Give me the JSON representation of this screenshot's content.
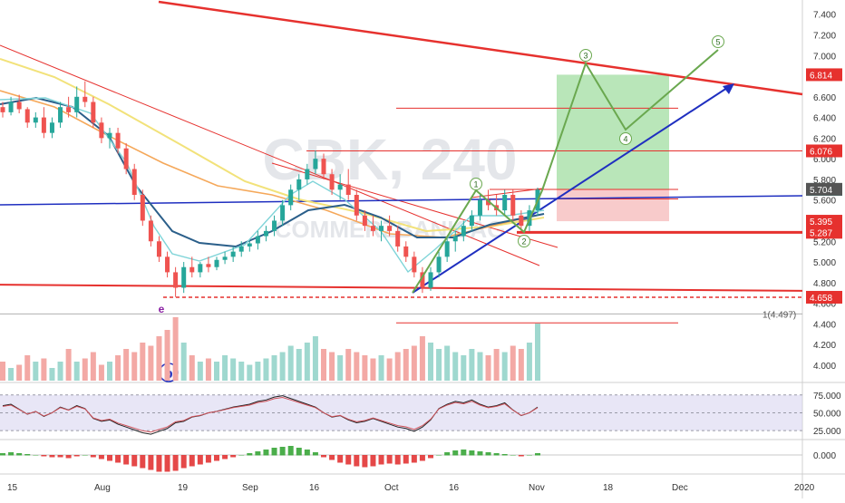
{
  "chart_data": {
    "type": "candlestick",
    "watermark": {
      "symbol": "CBK, 240",
      "name": "COMMERZBANK AG"
    },
    "colors": {
      "up": "#26a69a",
      "down": "#ef5350",
      "bull_wave": "#6aa84f",
      "trendline_red": "#e6312e",
      "trendline_blue": "#1f2fc0",
      "ma_blue": "#2b5f8a",
      "ma_cyan": "#7fd4d8",
      "ma_yellow": "#f2e27a",
      "ma_orange": "#f5a85a",
      "target_box": "#7fd27f",
      "stop_box": "#f4a8a8",
      "rsi_band": "#d6d2ee"
    },
    "x_axis": {
      "labels": [
        "15",
        "Aug",
        "19",
        "Sep",
        "16",
        "Oct",
        "16",
        "Nov",
        "18",
        "Dec",
        "2020"
      ],
      "label_x": [
        8,
        104,
        196,
        267,
        341,
        424,
        495,
        583,
        665,
        741,
        876
      ]
    },
    "price_axis": {
      "ticks": [
        "7.400",
        "7.200",
        "7.000",
        "6.800",
        "6.600",
        "6.400",
        "6.200",
        "6.000",
        "5.800",
        "5.600",
        "5.400",
        "5.200",
        "5.000",
        "4.800",
        "4.600",
        "4.400",
        "4.200",
        "4.000"
      ],
      "min": 3.85,
      "max": 7.45,
      "tags": [
        {
          "value": 6.814,
          "label": "6.814",
          "color": "#e6312e"
        },
        {
          "value": 6.076,
          "label": "6.076",
          "color": "#e6312e"
        },
        {
          "value": 5.703,
          "label": "5.703",
          "color": "#26a69a"
        },
        {
          "value": 5.704,
          "label": "5.704",
          "color": "#555555"
        },
        {
          "value": 5.395,
          "label": "5.395",
          "color": "#e6312e"
        },
        {
          "value": 5.287,
          "label": "5.287",
          "color": "#e6312e"
        },
        {
          "value": 4.658,
          "label": "4.658",
          "color": "#e6312e"
        }
      ]
    },
    "price_series_ohlc": [
      [
        6.5,
        6.55,
        6.4,
        6.45
      ],
      [
        6.45,
        6.6,
        6.42,
        6.55
      ],
      [
        6.55,
        6.62,
        6.44,
        6.48
      ],
      [
        6.48,
        6.5,
        6.3,
        6.35
      ],
      [
        6.35,
        6.45,
        6.3,
        6.4
      ],
      [
        6.4,
        6.5,
        6.2,
        6.25
      ],
      [
        6.25,
        6.4,
        6.2,
        6.35
      ],
      [
        6.35,
        6.55,
        6.3,
        6.5
      ],
      [
        6.5,
        6.6,
        6.4,
        6.45
      ],
      [
        6.45,
        6.7,
        6.4,
        6.6
      ],
      [
        6.6,
        6.75,
        6.5,
        6.55
      ],
      [
        6.55,
        6.6,
        6.3,
        6.35
      ],
      [
        6.35,
        6.4,
        6.15,
        6.2
      ],
      [
        6.2,
        6.3,
        6.1,
        6.25
      ],
      [
        6.25,
        6.3,
        6.05,
        6.1
      ],
      [
        6.1,
        6.15,
        5.85,
        5.9
      ],
      [
        5.9,
        5.95,
        5.6,
        5.65
      ],
      [
        5.65,
        5.7,
        5.35,
        5.4
      ],
      [
        5.4,
        5.45,
        5.15,
        5.2
      ],
      [
        5.2,
        5.25,
        5.0,
        5.05
      ],
      [
        5.05,
        5.1,
        4.85,
        4.9
      ],
      [
        4.9,
        4.95,
        4.66,
        4.75
      ],
      [
        4.75,
        5.0,
        4.7,
        4.95
      ],
      [
        4.95,
        5.05,
        4.85,
        4.9
      ],
      [
        4.9,
        5.0,
        4.85,
        4.98
      ],
      [
        4.98,
        5.05,
        4.9,
        4.95
      ],
      [
        4.95,
        5.05,
        4.92,
        5.02
      ],
      [
        5.02,
        5.1,
        4.98,
        5.05
      ],
      [
        5.05,
        5.15,
        5.0,
        5.1
      ],
      [
        5.1,
        5.2,
        5.05,
        5.15
      ],
      [
        5.15,
        5.2,
        5.1,
        5.18
      ],
      [
        5.18,
        5.3,
        5.12,
        5.25
      ],
      [
        5.25,
        5.35,
        5.2,
        5.3
      ],
      [
        5.3,
        5.45,
        5.25,
        5.4
      ],
      [
        5.4,
        5.6,
        5.35,
        5.55
      ],
      [
        5.55,
        5.75,
        5.5,
        5.7
      ],
      [
        5.7,
        5.85,
        5.6,
        5.8
      ],
      [
        5.8,
        5.95,
        5.75,
        5.9
      ],
      [
        5.9,
        6.08,
        5.85,
        6.0
      ],
      [
        6.0,
        6.05,
        5.8,
        5.85
      ],
      [
        5.85,
        5.9,
        5.65,
        5.7
      ],
      [
        5.7,
        5.85,
        5.6,
        5.75
      ],
      [
        5.75,
        5.9,
        5.6,
        5.65
      ],
      [
        5.65,
        5.7,
        5.4,
        5.45
      ],
      [
        5.45,
        5.5,
        5.3,
        5.35
      ],
      [
        5.35,
        5.45,
        5.25,
        5.3
      ],
      [
        5.3,
        5.4,
        5.2,
        5.35
      ],
      [
        5.35,
        5.45,
        5.25,
        5.3
      ],
      [
        5.3,
        5.35,
        5.1,
        5.15
      ],
      [
        5.15,
        5.2,
        5.0,
        5.05
      ],
      [
        5.05,
        5.1,
        4.85,
        4.9
      ],
      [
        4.9,
        4.95,
        4.7,
        4.75
      ],
      [
        4.75,
        4.95,
        4.72,
        4.9
      ],
      [
        4.9,
        5.1,
        4.85,
        5.05
      ],
      [
        5.05,
        5.25,
        5.0,
        5.2
      ],
      [
        5.2,
        5.3,
        5.1,
        5.25
      ],
      [
        5.25,
        5.4,
        5.2,
        5.35
      ],
      [
        5.35,
        5.5,
        5.3,
        5.45
      ],
      [
        5.45,
        5.65,
        5.4,
        5.6
      ],
      [
        5.6,
        5.7,
        5.5,
        5.55
      ],
      [
        5.55,
        5.65,
        5.45,
        5.5
      ],
      [
        5.5,
        5.7,
        5.45,
        5.65
      ],
      [
        5.65,
        5.7,
        5.4,
        5.45
      ],
      [
        5.45,
        5.5,
        5.3,
        5.35
      ],
      [
        5.35,
        5.55,
        5.3,
        5.5
      ],
      [
        5.5,
        5.72,
        5.45,
        5.7
      ]
    ],
    "volume_series": [
      0.3,
      0.2,
      0.25,
      0.4,
      0.3,
      0.35,
      0.2,
      0.3,
      0.5,
      0.3,
      0.35,
      0.45,
      0.25,
      0.3,
      0.4,
      0.5,
      0.45,
      0.6,
      0.55,
      0.7,
      0.8,
      1.0,
      0.6,
      0.4,
      0.3,
      0.35,
      0.3,
      0.4,
      0.35,
      0.3,
      0.25,
      0.3,
      0.35,
      0.4,
      0.45,
      0.55,
      0.5,
      0.6,
      0.7,
      0.5,
      0.45,
      0.4,
      0.5,
      0.45,
      0.4,
      0.35,
      0.4,
      0.35,
      0.45,
      0.5,
      0.55,
      0.7,
      0.6,
      0.5,
      0.55,
      0.45,
      0.4,
      0.5,
      0.45,
      0.4,
      0.5,
      0.45,
      0.55,
      0.5,
      0.6,
      0.9
    ],
    "rsi": {
      "ticks": [
        "75.000",
        "50.000",
        "25.000"
      ],
      "levels": [
        75,
        50,
        25
      ]
    },
    "macd": {
      "ticks": [
        "0.000"
      ]
    },
    "annotations": [
      {
        "kind": "wave_label",
        "text": "1"
      },
      {
        "kind": "wave_label",
        "text": "2"
      },
      {
        "kind": "wave_label",
        "text": "3"
      },
      {
        "kind": "wave_label",
        "text": "4"
      },
      {
        "kind": "wave_label",
        "text": "5"
      },
      {
        "kind": "letter",
        "text": "e"
      },
      {
        "kind": "letter",
        "text": "b"
      },
      {
        "kind": "price_note",
        "text": "1(4.497)"
      }
    ]
  }
}
